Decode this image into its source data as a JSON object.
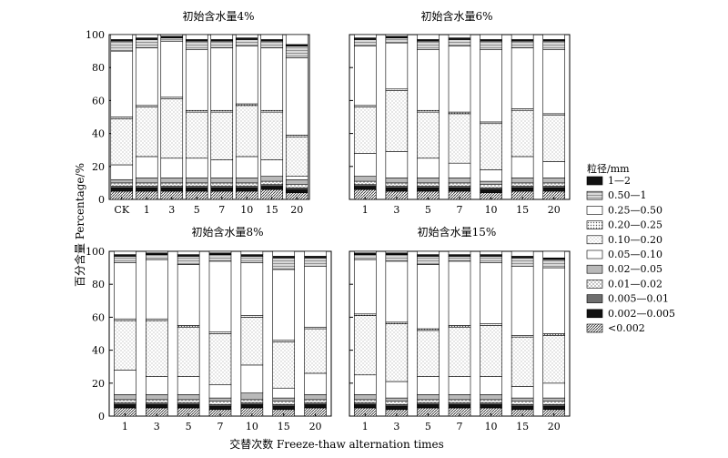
{
  "figure": {
    "ylabel": "百分含量 Percentage/%",
    "xlabel": "交替次数 Freeze-thaw alternation times",
    "legend_title": "粒径/mm"
  },
  "classes": [
    {
      "label": "<0.002",
      "pattern": "diag-dense"
    },
    {
      "label": "0.002—0.005",
      "pattern": "black"
    },
    {
      "label": "0.005—0.01",
      "pattern": "gray-dark"
    },
    {
      "label": "0.01—0.02",
      "pattern": "cross-light"
    },
    {
      "label": "0.02—0.05",
      "pattern": "gray-medium"
    },
    {
      "label": "0.05—0.10",
      "pattern": "white"
    },
    {
      "label": "0.10—0.20",
      "pattern": "dots-light"
    },
    {
      "label": "0.20—0.25",
      "pattern": "dots-dense"
    },
    {
      "label": "0.25—0.50",
      "pattern": "white"
    },
    {
      "label": "0.50—1",
      "pattern": "hatch"
    },
    {
      "label": "1—2",
      "pattern": "black"
    }
  ],
  "chart_data": [
    {
      "type": "bar",
      "stacked": true,
      "title": "初始含水量4%",
      "categories": [
        "CK",
        "1",
        "3",
        "5",
        "7",
        "10",
        "15",
        "20"
      ],
      "ylim": [
        0,
        100
      ],
      "yticks": [
        0,
        20,
        40,
        60,
        80,
        100
      ],
      "cumulative_boundaries": [
        [
          5,
          7,
          8,
          10,
          12,
          21,
          49,
          50,
          90,
          96,
          97
        ],
        [
          5,
          7,
          8,
          10,
          13,
          26,
          56,
          57,
          92,
          97,
          98
        ],
        [
          5,
          7,
          8,
          10,
          13,
          25,
          61,
          62,
          96,
          98,
          99
        ],
        [
          5,
          7,
          8,
          10,
          13,
          25,
          53,
          54,
          91,
          96,
          97
        ],
        [
          5,
          7,
          8,
          10,
          13,
          24,
          53,
          54,
          92,
          96,
          97
        ],
        [
          5,
          7,
          8,
          10,
          13,
          26,
          57,
          58,
          93,
          97,
          98
        ],
        [
          6,
          8,
          9,
          11,
          14,
          24,
          53,
          54,
          92,
          96,
          97
        ],
        [
          4,
          6,
          7,
          9,
          12,
          14,
          38,
          39,
          86,
          93,
          94
        ]
      ]
    },
    {
      "type": "bar",
      "stacked": true,
      "title": "初始含水量6%",
      "categories": [
        "1",
        "3",
        "5",
        "7",
        "10",
        "15",
        "20"
      ],
      "ylim": [
        0,
        100
      ],
      "yticks": [
        0,
        20,
        40,
        60,
        80,
        100
      ],
      "cumulative_boundaries": [
        [
          6,
          8,
          9,
          11,
          14,
          28,
          56,
          57,
          93,
          97,
          98
        ],
        [
          5,
          7,
          8,
          10,
          13,
          29,
          66,
          67,
          95,
          98,
          99
        ],
        [
          5,
          7,
          8,
          10,
          13,
          25,
          53,
          54,
          91,
          96,
          97
        ],
        [
          5,
          7,
          8,
          10,
          13,
          22,
          52,
          53,
          93,
          97,
          98
        ],
        [
          4,
          6,
          7,
          9,
          11,
          18,
          46,
          47,
          91,
          96,
          97
        ],
        [
          5,
          7,
          8,
          10,
          13,
          26,
          54,
          55,
          92,
          96,
          97
        ],
        [
          5,
          7,
          8,
          10,
          13,
          23,
          51,
          52,
          91,
          96,
          97
        ]
      ]
    },
    {
      "type": "bar",
      "stacked": true,
      "title": "初始含水量8%",
      "categories": [
        "1",
        "3",
        "5",
        "7",
        "10",
        "15",
        "20"
      ],
      "ylim": [
        0,
        100
      ],
      "yticks": [
        0,
        20,
        40,
        60,
        80,
        100
      ],
      "cumulative_boundaries": [
        [
          5,
          7,
          8,
          10,
          13,
          28,
          58,
          59,
          93,
          97,
          98
        ],
        [
          5,
          7,
          8,
          10,
          13,
          24,
          58,
          59,
          95,
          98,
          99
        ],
        [
          5,
          7,
          8,
          10,
          13,
          24,
          54,
          55,
          92,
          97,
          98
        ],
        [
          4,
          6,
          7,
          9,
          11,
          19,
          50,
          51,
          94,
          98,
          99
        ],
        [
          5,
          7,
          8,
          10,
          14,
          31,
          60,
          61,
          93,
          97,
          98
        ],
        [
          4,
          6,
          7,
          9,
          11,
          17,
          45,
          46,
          89,
          96,
          97
        ],
        [
          5,
          7,
          8,
          10,
          13,
          26,
          53,
          54,
          91,
          96,
          97
        ]
      ]
    },
    {
      "type": "bar",
      "stacked": true,
      "title": "初始含水量15%",
      "categories": [
        "1",
        "3",
        "5",
        "7",
        "10",
        "15",
        "20"
      ],
      "ylim": [
        0,
        100
      ],
      "yticks": [
        0,
        20,
        40,
        60,
        80,
        100
      ],
      "cumulative_boundaries": [
        [
          5,
          7,
          8,
          10,
          13,
          25,
          61,
          62,
          95,
          98,
          99
        ],
        [
          4,
          6,
          7,
          9,
          11,
          21,
          56,
          57,
          94,
          98,
          99
        ],
        [
          5,
          7,
          8,
          10,
          13,
          24,
          52,
          53,
          92,
          97,
          98
        ],
        [
          5,
          7,
          8,
          10,
          13,
          24,
          54,
          55,
          94,
          97,
          98
        ],
        [
          5,
          7,
          8,
          10,
          13,
          24,
          55,
          56,
          93,
          97,
          98
        ],
        [
          4,
          6,
          7,
          9,
          11,
          18,
          48,
          49,
          91,
          96,
          97
        ],
        [
          4,
          6,
          7,
          9,
          11,
          20,
          49,
          50,
          90,
          95,
          96
        ]
      ]
    }
  ]
}
